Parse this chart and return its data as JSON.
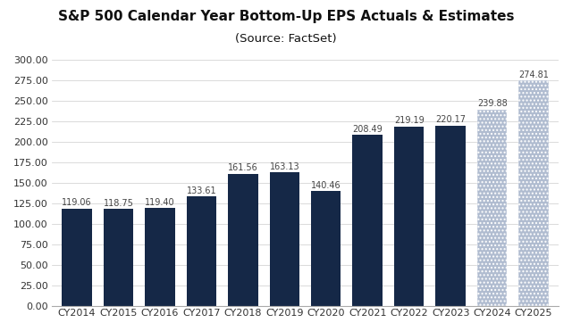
{
  "title_line1": "S&P 500 Calendar Year Bottom-Up EPS Actuals & Estimates",
  "title_line2": "(Source: FactSet)",
  "categories": [
    "CY2014",
    "CY2015",
    "CY2016",
    "CY2017",
    "CY2018",
    "CY2019",
    "CY2020",
    "CY2021",
    "CY2022",
    "CY2023",
    "CY2024",
    "CY2025"
  ],
  "values": [
    119.06,
    118.75,
    119.4,
    133.61,
    161.56,
    163.13,
    140.46,
    208.49,
    219.19,
    220.17,
    239.88,
    274.81
  ],
  "solid_color": "#152847",
  "hatched_indices": [
    10,
    11
  ],
  "hatch_pattern": "....",
  "hatch_facecolor": "#b0bcd0",
  "hatch_edgecolor": "#ffffff",
  "ylim": [
    0,
    300
  ],
  "yticks": [
    0,
    25,
    50,
    75,
    100,
    125,
    150,
    175,
    200,
    225,
    250,
    275,
    300
  ],
  "bar_value_fontsize": 7,
  "bar_value_color": "#444444",
  "title_fontsize": 11,
  "subtitle_fontsize": 9.5,
  "tick_fontsize": 8,
  "background_color": "#ffffff",
  "grid_color": "#cccccc",
  "bar_width": 0.72
}
